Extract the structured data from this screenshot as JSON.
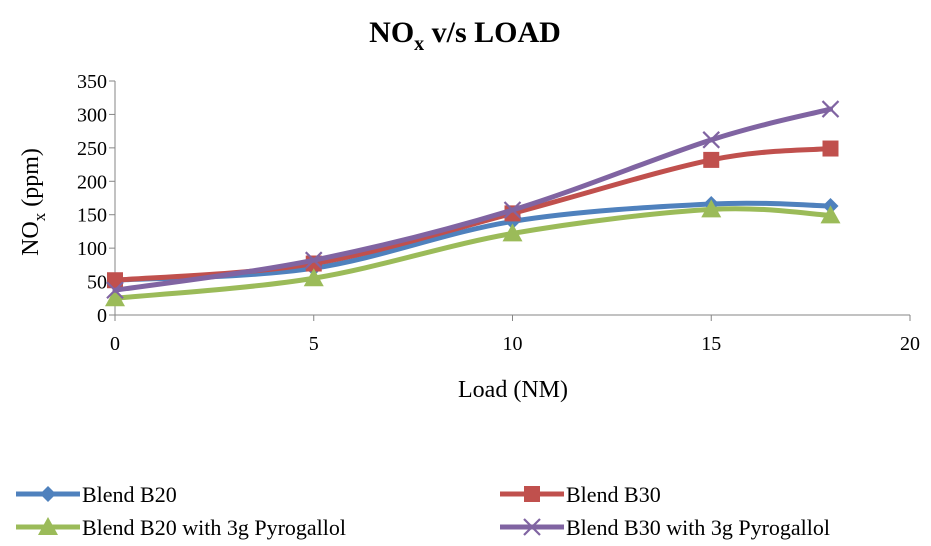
{
  "chart_data": {
    "type": "line",
    "title": {
      "main": "NO",
      "sub": "x",
      "rest": " v/s LOAD"
    },
    "xlabel": "Load (NM)",
    "ylabel": {
      "main": "NO",
      "sub": "x",
      "rest": " (ppm)"
    },
    "xlim": [
      0,
      20
    ],
    "ylim": [
      0,
      350
    ],
    "xticks": [
      0,
      5,
      10,
      15,
      20
    ],
    "yticks": [
      0,
      50,
      100,
      150,
      200,
      250,
      300,
      350
    ],
    "grid": false,
    "smooth": true,
    "legend_position": "bottom",
    "series": [
      {
        "name": "Blend B20",
        "marker": "diamond",
        "color": "#4f81bd",
        "points": [
          [
            0,
            52
          ],
          [
            5,
            70
          ],
          [
            10,
            140
          ],
          [
            15,
            166
          ],
          [
            18,
            163
          ]
        ]
      },
      {
        "name": "Blend B30",
        "marker": "square",
        "color": "#c0504d",
        "points": [
          [
            0,
            52
          ],
          [
            5,
            77
          ],
          [
            10,
            152
          ],
          [
            15,
            232
          ],
          [
            18,
            249
          ]
        ]
      },
      {
        "name": "Blend B20 with 3g Pyrogallol",
        "marker": "triangle",
        "color": "#9bbb59",
        "points": [
          [
            0,
            25
          ],
          [
            5,
            55
          ],
          [
            10,
            122
          ],
          [
            15,
            158
          ],
          [
            18,
            149
          ]
        ]
      },
      {
        "name": "Blend B30 with 3g Pyrogallol",
        "marker": "x",
        "color": "#8064a2",
        "points": [
          [
            0,
            37
          ],
          [
            5,
            82
          ],
          [
            10,
            157
          ],
          [
            15,
            262
          ],
          [
            18,
            308
          ]
        ]
      }
    ]
  }
}
